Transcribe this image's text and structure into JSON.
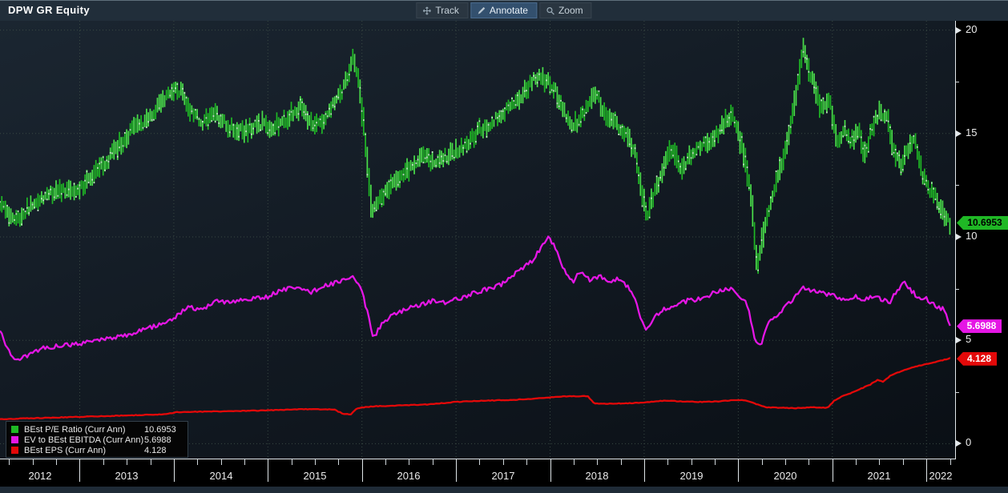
{
  "header": {
    "title": "DPW GR Equity"
  },
  "toolbar": {
    "buttons": [
      {
        "label": "Track",
        "icon": "track-move-icon",
        "active": false
      },
      {
        "label": "Annotate",
        "icon": "annotate-pencil-icon",
        "active": true
      },
      {
        "label": "Zoom",
        "icon": "zoom-magnifier-icon",
        "active": false
      }
    ]
  },
  "chart_data": {
    "type": "bar+line",
    "title": "DPW GR Equity",
    "grid": "dotted",
    "grid_color": "#3c4c45",
    "legend_position": "bottom-left",
    "legend": [
      {
        "label": "BEst P/E Ratio (Curr Ann)",
        "value": "10.6953",
        "color": "#1fb825"
      },
      {
        "label": "EV to BEst EBITDA (Curr Ann)",
        "value": "5.6988",
        "color": "#e516e5"
      },
      {
        "label": "BEst EPS (Curr Ann)",
        "value": "4.128",
        "color": "#e30909"
      }
    ],
    "x_axis": {
      "first_year": 2012,
      "year_labels": [
        "2012",
        "2013",
        "2014",
        "2015",
        "2016",
        "2017",
        "2018",
        "2019",
        "2020",
        "2021",
        "2022"
      ],
      "grid_years": [
        2013,
        2014,
        2015,
        2016,
        2017,
        2018,
        2019,
        2020,
        2021,
        2022
      ],
      "xlim": [
        2012.153,
        2022.305
      ],
      "data_start": 2012.153,
      "data_end": 2022.25
    },
    "y_axis": {
      "ylim": [
        -0.72,
        20.45
      ],
      "major": [
        {
          "v": 20,
          "label": "20"
        },
        {
          "v": 15,
          "label": "15"
        },
        {
          "v": 10,
          "label": "10"
        },
        {
          "v": 5,
          "label": "5"
        },
        {
          "v": 0,
          "label": "0"
        }
      ],
      "minor": [
        17.5,
        12.5,
        7.5,
        2.5
      ],
      "grid_values": [
        20,
        15,
        10,
        5,
        0
      ]
    },
    "series": [
      {
        "name": "BEst P/E Ratio (Curr Ann)",
        "style": "hlc-bars",
        "color": "#1fb825",
        "color_bright": "#4ade4a",
        "tick_color": "#d8f6d8",
        "last_value": 10.6953,
        "last_label": "10.6953",
        "anchors": [
          [
            2012.153,
            11.5
          ],
          [
            2012.25,
            11.1
          ],
          [
            2012.35,
            10.9
          ],
          [
            2012.5,
            11.6
          ],
          [
            2012.65,
            12.0
          ],
          [
            2012.8,
            12.3
          ],
          [
            2012.95,
            12.1
          ],
          [
            2013.1,
            12.8
          ],
          [
            2013.25,
            13.5
          ],
          [
            2013.4,
            14.3
          ],
          [
            2013.55,
            15.1
          ],
          [
            2013.7,
            15.6
          ],
          [
            2013.85,
            16.4
          ],
          [
            2014.0,
            17.2
          ],
          [
            2014.08,
            17.0
          ],
          [
            2014.18,
            16.1
          ],
          [
            2014.3,
            15.5
          ],
          [
            2014.45,
            15.9
          ],
          [
            2014.6,
            15.3
          ],
          [
            2014.75,
            15.1
          ],
          [
            2014.9,
            15.5
          ],
          [
            2015.05,
            15.3
          ],
          [
            2015.2,
            15.7
          ],
          [
            2015.35,
            16.3
          ],
          [
            2015.5,
            15.3
          ],
          [
            2015.65,
            16.0
          ],
          [
            2015.8,
            17.1
          ],
          [
            2015.9,
            18.6
          ],
          [
            2015.96,
            17.9
          ],
          [
            2016.04,
            14.5
          ],
          [
            2016.1,
            11.3
          ],
          [
            2016.2,
            11.9
          ],
          [
            2016.35,
            12.7
          ],
          [
            2016.5,
            13.3
          ],
          [
            2016.65,
            13.9
          ],
          [
            2016.8,
            13.6
          ],
          [
            2016.95,
            14.0
          ],
          [
            2017.1,
            14.4
          ],
          [
            2017.25,
            15.2
          ],
          [
            2017.4,
            15.6
          ],
          [
            2017.55,
            16.2
          ],
          [
            2017.7,
            16.9
          ],
          [
            2017.85,
            17.8
          ],
          [
            2017.95,
            17.6
          ],
          [
            2018.05,
            17.2
          ],
          [
            2018.15,
            16.0
          ],
          [
            2018.25,
            15.3
          ],
          [
            2018.38,
            16.2
          ],
          [
            2018.48,
            16.9
          ],
          [
            2018.6,
            15.9
          ],
          [
            2018.72,
            15.4
          ],
          [
            2018.82,
            15.0
          ],
          [
            2018.92,
            13.8
          ],
          [
            2018.98,
            12.0
          ],
          [
            2019.03,
            11.0
          ],
          [
            2019.1,
            12.0
          ],
          [
            2019.2,
            13.2
          ],
          [
            2019.3,
            14.4
          ],
          [
            2019.4,
            13.1
          ],
          [
            2019.5,
            14.0
          ],
          [
            2019.65,
            14.5
          ],
          [
            2019.8,
            15.1
          ],
          [
            2019.93,
            16.0
          ],
          [
            2020.05,
            14.2
          ],
          [
            2020.13,
            12.3
          ],
          [
            2020.2,
            8.6
          ],
          [
            2020.3,
            10.9
          ],
          [
            2020.42,
            12.9
          ],
          [
            2020.52,
            14.6
          ],
          [
            2020.62,
            16.9
          ],
          [
            2020.69,
            19.0
          ],
          [
            2020.77,
            17.8
          ],
          [
            2020.87,
            16.3
          ],
          [
            2020.97,
            16.6
          ],
          [
            2021.05,
            14.6
          ],
          [
            2021.12,
            15.2
          ],
          [
            2021.2,
            14.6
          ],
          [
            2021.28,
            15.3
          ],
          [
            2021.34,
            13.8
          ],
          [
            2021.42,
            15.3
          ],
          [
            2021.5,
            16.0
          ],
          [
            2021.58,
            15.8
          ],
          [
            2021.66,
            14.0
          ],
          [
            2021.74,
            13.5
          ],
          [
            2021.82,
            14.3
          ],
          [
            2021.88,
            14.6
          ],
          [
            2021.95,
            13.1
          ],
          [
            2022.02,
            12.3
          ],
          [
            2022.1,
            11.9
          ],
          [
            2022.16,
            11.3
          ],
          [
            2022.22,
            10.9
          ],
          [
            2022.25,
            10.6953
          ]
        ]
      },
      {
        "name": "EV to BEst EBITDA (Curr Ann)",
        "style": "line",
        "color": "#e516e5",
        "last_value": 5.6988,
        "last_label": "5.6988",
        "anchors": [
          [
            2012.153,
            5.5
          ],
          [
            2012.22,
            4.7
          ],
          [
            2012.32,
            4.0
          ],
          [
            2012.45,
            4.3
          ],
          [
            2012.6,
            4.6
          ],
          [
            2012.8,
            4.75
          ],
          [
            2013.0,
            4.85
          ],
          [
            2013.2,
            5.0
          ],
          [
            2013.4,
            5.15
          ],
          [
            2013.6,
            5.4
          ],
          [
            2013.8,
            5.7
          ],
          [
            2014.0,
            6.1
          ],
          [
            2014.15,
            6.6
          ],
          [
            2014.3,
            6.5
          ],
          [
            2014.45,
            6.9
          ],
          [
            2014.6,
            6.8
          ],
          [
            2014.8,
            7.0
          ],
          [
            2015.0,
            7.1
          ],
          [
            2015.15,
            7.45
          ],
          [
            2015.3,
            7.6
          ],
          [
            2015.45,
            7.3
          ],
          [
            2015.6,
            7.65
          ],
          [
            2015.75,
            7.8
          ],
          [
            2015.9,
            8.05
          ],
          [
            2015.98,
            7.7
          ],
          [
            2016.06,
            6.3
          ],
          [
            2016.12,
            5.1
          ],
          [
            2016.2,
            5.7
          ],
          [
            2016.32,
            6.2
          ],
          [
            2016.45,
            6.45
          ],
          [
            2016.6,
            6.7
          ],
          [
            2016.75,
            6.9
          ],
          [
            2016.9,
            6.8
          ],
          [
            2017.05,
            7.05
          ],
          [
            2017.2,
            7.3
          ],
          [
            2017.35,
            7.5
          ],
          [
            2017.5,
            7.75
          ],
          [
            2017.65,
            8.3
          ],
          [
            2017.8,
            8.8
          ],
          [
            2017.92,
            9.6
          ],
          [
            2017.98,
            10.05
          ],
          [
            2018.06,
            9.4
          ],
          [
            2018.15,
            8.4
          ],
          [
            2018.24,
            7.8
          ],
          [
            2018.32,
            8.35
          ],
          [
            2018.42,
            7.9
          ],
          [
            2018.52,
            8.1
          ],
          [
            2018.62,
            7.85
          ],
          [
            2018.72,
            7.95
          ],
          [
            2018.82,
            7.6
          ],
          [
            2018.9,
            7.1
          ],
          [
            2018.97,
            5.9
          ],
          [
            2019.03,
            5.45
          ],
          [
            2019.1,
            6.1
          ],
          [
            2019.2,
            6.5
          ],
          [
            2019.3,
            6.6
          ],
          [
            2019.45,
            6.9
          ],
          [
            2019.6,
            7.0
          ],
          [
            2019.75,
            7.3
          ],
          [
            2019.9,
            7.5
          ],
          [
            2020.0,
            7.25
          ],
          [
            2020.1,
            6.7
          ],
          [
            2020.18,
            5.0
          ],
          [
            2020.23,
            4.7
          ],
          [
            2020.32,
            5.8
          ],
          [
            2020.45,
            6.4
          ],
          [
            2020.58,
            7.0
          ],
          [
            2020.7,
            7.55
          ],
          [
            2020.82,
            7.35
          ],
          [
            2020.95,
            7.2
          ],
          [
            2021.05,
            7.1
          ],
          [
            2021.15,
            6.9
          ],
          [
            2021.25,
            7.15
          ],
          [
            2021.35,
            6.95
          ],
          [
            2021.45,
            7.2
          ],
          [
            2021.52,
            7.0
          ],
          [
            2021.6,
            6.8
          ],
          [
            2021.68,
            7.3
          ],
          [
            2021.76,
            7.8
          ],
          [
            2021.82,
            7.5
          ],
          [
            2021.88,
            7.2
          ],
          [
            2021.95,
            6.9
          ],
          [
            2022.0,
            7.0
          ],
          [
            2022.06,
            6.8
          ],
          [
            2022.12,
            6.6
          ],
          [
            2022.18,
            6.5
          ],
          [
            2022.22,
            6.1
          ],
          [
            2022.25,
            5.6988
          ]
        ]
      },
      {
        "name": "BEst EPS (Curr Ann)",
        "style": "line",
        "color": "#e30909",
        "last_value": 4.128,
        "last_label": "4.128",
        "anchors": [
          [
            2012.153,
            1.18
          ],
          [
            2012.4,
            1.22
          ],
          [
            2012.7,
            1.26
          ],
          [
            2013.0,
            1.3
          ],
          [
            2013.3,
            1.34
          ],
          [
            2013.6,
            1.38
          ],
          [
            2013.9,
            1.42
          ],
          [
            2014.02,
            1.52
          ],
          [
            2014.3,
            1.55
          ],
          [
            2014.6,
            1.57
          ],
          [
            2014.9,
            1.6
          ],
          [
            2015.1,
            1.63
          ],
          [
            2015.4,
            1.67
          ],
          [
            2015.7,
            1.66
          ],
          [
            2015.8,
            1.45
          ],
          [
            2015.88,
            1.42
          ],
          [
            2015.95,
            1.72
          ],
          [
            2016.1,
            1.8
          ],
          [
            2016.4,
            1.85
          ],
          [
            2016.7,
            1.9
          ],
          [
            2017.0,
            2.02
          ],
          [
            2017.3,
            2.08
          ],
          [
            2017.6,
            2.12
          ],
          [
            2017.9,
            2.2
          ],
          [
            2018.1,
            2.28
          ],
          [
            2018.4,
            2.3
          ],
          [
            2018.47,
            1.95
          ],
          [
            2018.6,
            1.93
          ],
          [
            2018.8,
            1.95
          ],
          [
            2019.0,
            2.0
          ],
          [
            2019.2,
            2.08
          ],
          [
            2019.4,
            2.05
          ],
          [
            2019.6,
            2.02
          ],
          [
            2019.8,
            2.05
          ],
          [
            2019.95,
            2.1
          ],
          [
            2020.05,
            2.12
          ],
          [
            2020.15,
            1.98
          ],
          [
            2020.3,
            1.76
          ],
          [
            2020.6,
            1.72
          ],
          [
            2020.8,
            1.76
          ],
          [
            2020.95,
            1.74
          ],
          [
            2021.02,
            2.08
          ],
          [
            2021.1,
            2.28
          ],
          [
            2021.2,
            2.45
          ],
          [
            2021.3,
            2.65
          ],
          [
            2021.4,
            2.85
          ],
          [
            2021.48,
            3.08
          ],
          [
            2021.54,
            3.0
          ],
          [
            2021.62,
            3.3
          ],
          [
            2021.7,
            3.45
          ],
          [
            2021.8,
            3.62
          ],
          [
            2021.9,
            3.75
          ],
          [
            2022.0,
            3.85
          ],
          [
            2022.1,
            3.95
          ],
          [
            2022.18,
            4.05
          ],
          [
            2022.25,
            4.128
          ]
        ]
      }
    ]
  }
}
